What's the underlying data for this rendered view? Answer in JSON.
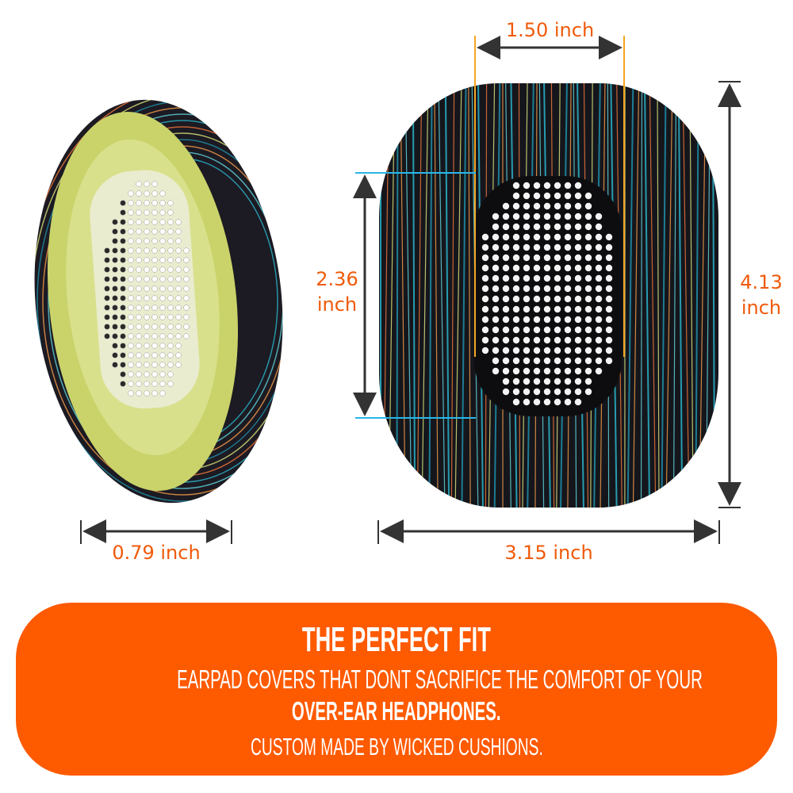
{
  "dimensions": {
    "side_width": "0.79 inch",
    "inner_width": "1.50 inch",
    "inner_height_value": "2.36",
    "inner_height_unit": "inch",
    "outer_height_value": "4.13",
    "outer_height_unit": "inch",
    "outer_width": "3.15 inch"
  },
  "banner": {
    "title": "THE PERFECT FIT",
    "line1": "EARPAD COVERS THAT DONT SACRIFICE THE COMFORT OF YOUR",
    "line2": "OVER-EAR HEADPHONES.",
    "line3": "CUSTOM MADE BY WICKED CUSHIONS."
  },
  "colors": {
    "accent": "#fe5a00",
    "dimension_text": "#f05a0a",
    "guide_orange": "#f5a623",
    "guide_cyan": "#29b6e8",
    "arrow": "#333333"
  }
}
